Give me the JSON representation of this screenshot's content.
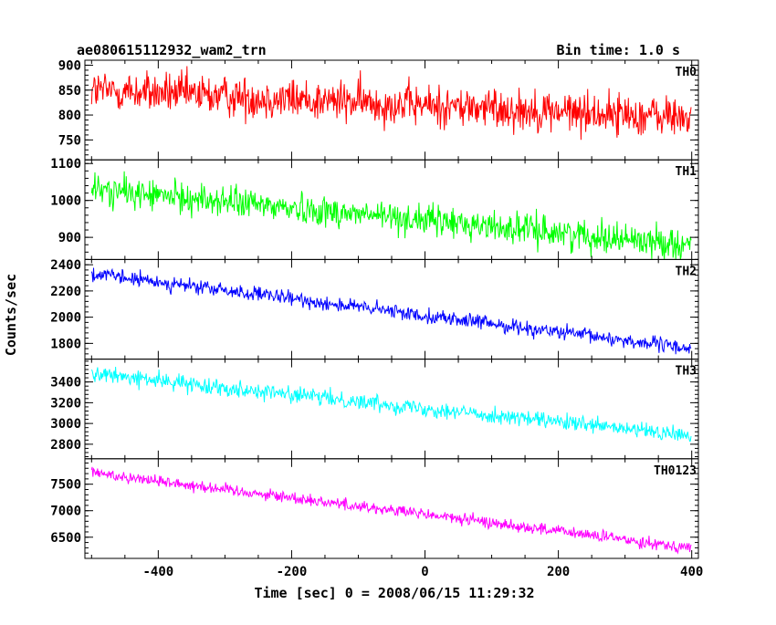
{
  "header": {
    "title": "ae080615112932_wam2_trn",
    "bin_time": "Bin time: 1.0 s"
  },
  "chart_data": {
    "type": "line",
    "xlabel": "Time [sec] 0 = 2008/06/15 11:29:32",
    "ylabel": "Counts/sec",
    "xlim": [
      -510,
      410
    ],
    "xticks": [
      -400,
      -200,
      0,
      200,
      400
    ],
    "grid": false,
    "panels": [
      {
        "name": "TH0",
        "color": "#ff0000",
        "ylim": [
          710,
          910
        ],
        "yticks": [
          750,
          800,
          850,
          900
        ],
        "trend": [
          850,
          795
        ],
        "noise": 30
      },
      {
        "name": "TH1",
        "color": "#00ff00",
        "ylim": [
          840,
          1110
        ],
        "yticks": [
          900,
          1000,
          1100
        ],
        "trend": [
          1030,
          880
        ],
        "noise": 30
      },
      {
        "name": "TH2",
        "color": "#0000ff",
        "ylim": [
          1680,
          2440
        ],
        "yticks": [
          1800,
          2000,
          2200,
          2400
        ],
        "trend": [
          2330,
          1760
        ],
        "noise": 40
      },
      {
        "name": "TH3",
        "color": "#00ffff",
        "ylim": [
          2660,
          3620
        ],
        "yticks": [
          2800,
          3000,
          3200,
          3400
        ],
        "trend": [
          3480,
          2880
        ],
        "noise": 55
      },
      {
        "name": "TH0123",
        "color": "#ff00ff",
        "ylim": [
          6100,
          7980
        ],
        "yticks": [
          6500,
          7000,
          7500
        ],
        "trend": [
          7720,
          6300
        ],
        "noise": 80
      }
    ]
  }
}
